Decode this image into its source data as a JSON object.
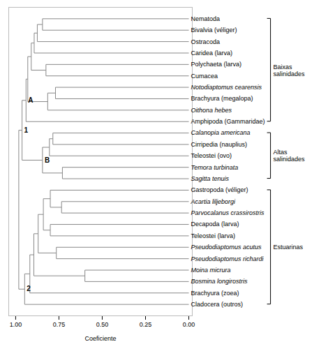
{
  "chart_data": {
    "type": "dendrogram",
    "categories": [
      "Nematoda",
      "Bivalvia (véliger)",
      "Ostracoda",
      "Caridea (larva)",
      "Polychaeta (larva)",
      "Cumacea",
      "Notodiaptomus cearensis",
      "Brachyura (megalopa)",
      "Oithona hebes",
      "Amphipoda (Gammaridae)",
      "Calanopia americana",
      "Cirripedia (nauplius)",
      "Teleostei (ovo)",
      "Temora turbinata",
      "Sagitta tenuis",
      "Gastropoda (véliger)",
      "Acartia liljeborgi",
      "Parvocalanus crassirostris",
      "Decapoda (larva)",
      "Teleostei (larva)",
      "Pseudodiaptomus acutus",
      "Pseudodiaptomus richardi",
      "Moina micrura",
      "Bosmina longirostris",
      "Brachyura (zoea)",
      "Cladocera (outros)"
    ],
    "merges": [
      {
        "id": 26,
        "left": 0,
        "right": 1,
        "value": 0.845
      },
      {
        "id": 27,
        "left": 26,
        "right": 2,
        "value": 0.875
      },
      {
        "id": 28,
        "left": 27,
        "right": 3,
        "value": 0.893
      },
      {
        "id": 29,
        "left": 4,
        "right": 5,
        "value": 0.825
      },
      {
        "id": 30,
        "left": 28,
        "right": 29,
        "value": 0.91
      },
      {
        "id": 31,
        "left": 6,
        "right": 7,
        "value": 0.77
      },
      {
        "id": 32,
        "left": 31,
        "right": 8,
        "value": 0.815
      },
      {
        "id": 33,
        "left": 30,
        "right": 32,
        "value": 0.93
      },
      {
        "id": 34,
        "left": 33,
        "right": 9,
        "value": 0.94
      },
      {
        "id": 35,
        "left": 10,
        "right": 11,
        "value": 0.785
      },
      {
        "id": 36,
        "left": 35,
        "right": 12,
        "value": 0.805
      },
      {
        "id": 37,
        "left": 13,
        "right": 14,
        "value": 0.73
      },
      {
        "id": 38,
        "left": 36,
        "right": 37,
        "value": 0.845
      },
      {
        "id": 39,
        "left": 34,
        "right": 38,
        "value": 0.963
      },
      {
        "id": 40,
        "left": 16,
        "right": 17,
        "value": 0.735
      },
      {
        "id": 41,
        "left": 15,
        "right": 40,
        "value": 0.8
      },
      {
        "id": 42,
        "left": 18,
        "right": 19,
        "value": 0.8
      },
      {
        "id": 43,
        "left": 41,
        "right": 42,
        "value": 0.84
      },
      {
        "id": 44,
        "left": 20,
        "right": 21,
        "value": 0.765
      },
      {
        "id": 45,
        "left": 43,
        "right": 44,
        "value": 0.87
      },
      {
        "id": 46,
        "left": 22,
        "right": 23,
        "value": 0.6
      },
      {
        "id": 47,
        "left": 45,
        "right": 46,
        "value": 0.895
      },
      {
        "id": 48,
        "left": 47,
        "right": 24,
        "value": 0.918
      },
      {
        "id": 49,
        "left": 48,
        "right": 25,
        "value": 0.948
      },
      {
        "id": 50,
        "left": 39,
        "right": 49,
        "value": 0.982
      }
    ],
    "groups": [
      {
        "label": "Baixas\nsalinidades",
        "leaves": [
          0,
          9
        ]
      },
      {
        "label": "Altas\nsalinidades",
        "leaves": [
          10,
          14
        ]
      },
      {
        "label": "Estuarinas",
        "leaves": [
          15,
          25
        ]
      }
    ],
    "annotations": [
      {
        "text": "A",
        "node": 34
      },
      {
        "text": "B",
        "node": 38
      },
      {
        "text": "1",
        "node": 39
      },
      {
        "text": "2",
        "node": 49
      }
    ],
    "xlabel": "Coeficiente",
    "xlim": [
      1.04,
      -0.02
    ],
    "xticks": [
      {
        "value": 1.0,
        "label": "1.00"
      },
      {
        "value": 0.75,
        "label": "0.75"
      },
      {
        "value": 0.5,
        "label": "0.50"
      },
      {
        "value": 0.25,
        "label": "0.25"
      },
      {
        "value": 0.0,
        "label": "0.00"
      }
    ],
    "color": "#888888",
    "tick_labels": "x",
    "grid": false
  }
}
